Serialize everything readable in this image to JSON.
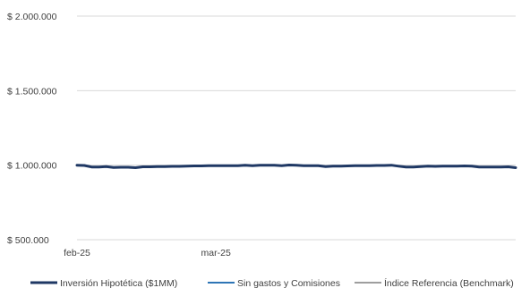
{
  "chart_data": {
    "type": "line",
    "ylim": [
      500000,
      2000000
    ],
    "yticks": [
      500000,
      1000000,
      1500000,
      2000000
    ],
    "ytick_labels": [
      "$ 500.000",
      "$ 1.000.000",
      "$ 1.500.000",
      "$ 2.000.000"
    ],
    "xtick_labels": [
      {
        "label": "feb-25",
        "index": 0
      },
      {
        "label": "mar-25",
        "index": 19
      }
    ],
    "grid": true,
    "legend_position": "bottom",
    "series": [
      {
        "name": "Inversión Hipotética ($1MM)",
        "color": "#1f3864",
        "values": [
          1000000,
          998000,
          988000,
          987000,
          990000,
          984000,
          986000,
          986000,
          983000,
          989000,
          989000,
          990000,
          990000,
          992000,
          992000,
          994000,
          995000,
          995000,
          996000,
          996000,
          996000,
          997000,
          997000,
          999000,
          997000,
          999000,
          1000000,
          1000000,
          997000,
          1001000,
          999000,
          997000,
          997000,
          996000,
          991000,
          993000,
          993000,
          995000,
          996000,
          997000,
          997000,
          998000,
          998000,
          1000000,
          993000,
          987000,
          988000,
          990000,
          993000,
          992000,
          993000,
          993000,
          994000,
          995000,
          993000,
          988000,
          987000,
          988000,
          987000,
          989000,
          983000
        ]
      },
      {
        "name": "Sin gastos y Comisiones",
        "color": "#2e75b6",
        "values": [
          1000000,
          998000,
          988000,
          987000,
          990000,
          984000,
          986000,
          986000,
          983000,
          989000,
          989000,
          990000,
          990000,
          992000,
          992000,
          994000,
          995000,
          995000,
          996000,
          996000,
          996000,
          997000,
          997000,
          999000,
          997000,
          999000,
          1000000,
          1000000,
          997000,
          1001000,
          999000,
          997000,
          997000,
          996000,
          991000,
          993000,
          993000,
          995000,
          996000,
          997000,
          997000,
          998000,
          998000,
          1000000,
          993000,
          987000,
          988000,
          990000,
          993000,
          992000,
          993000,
          993000,
          994000,
          995000,
          993000,
          988000,
          987000,
          988000,
          987000,
          989000,
          983000
        ]
      },
      {
        "name": "Índice Referencia (Benchmark)",
        "color": "#7f7f7f",
        "values": [
          1000000,
          998000,
          988000,
          987000,
          990000,
          984000,
          986000,
          986000,
          983000,
          989000,
          989000,
          990000,
          990000,
          992000,
          992000,
          994000,
          995000,
          995000,
          996000,
          996000,
          996000,
          997000,
          997000,
          999000,
          997000,
          999000,
          1000000,
          1000000,
          997000,
          1001000,
          999000,
          997000,
          997000,
          996000,
          991000,
          993000,
          993000,
          995000,
          996000,
          997000,
          997000,
          998000,
          998000,
          1000000,
          993000,
          987000,
          988000,
          990000,
          993000,
          992000,
          993000,
          993000,
          994000,
          995000,
          993000,
          988000,
          987000,
          988000,
          987000,
          989000,
          983000
        ]
      }
    ]
  }
}
